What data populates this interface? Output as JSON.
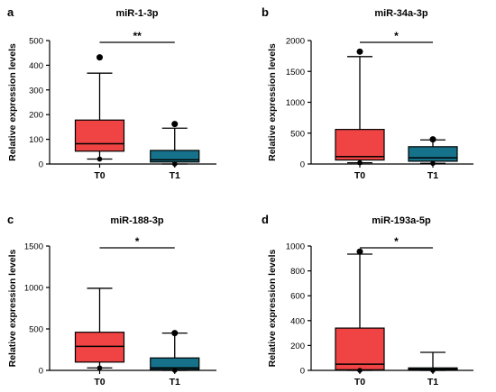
{
  "colors": {
    "t0_fill": "#f04444",
    "t1_fill": "#16728a",
    "stroke": "#000000"
  },
  "chart_data": [
    {
      "panel": "a",
      "type": "box",
      "title": "miR-1-3p",
      "ylabel": "Relative expression levels",
      "ylim": [
        0,
        500
      ],
      "yticks": [
        "0",
        "100",
        "200",
        "300",
        "400",
        "500"
      ],
      "categories": [
        "T0",
        "T1"
      ],
      "series": [
        {
          "category": "T0",
          "min": 20,
          "q1": 52,
          "median": 82,
          "q3": 178,
          "max": 368,
          "outliers": [
            432
          ]
        },
        {
          "category": "T1",
          "min": 0,
          "q1": 8,
          "median": 17,
          "q3": 55,
          "max": 145,
          "outliers": [
            162
          ]
        }
      ],
      "significance": "**"
    },
    {
      "panel": "b",
      "type": "box",
      "title": "miR-34a-3p",
      "ylabel": "Relative expression levels",
      "ylim": [
        0,
        2000
      ],
      "yticks": [
        "0",
        "500",
        "1000",
        "1500",
        "2000"
      ],
      "categories": [
        "T0",
        "T1"
      ],
      "series": [
        {
          "category": "T0",
          "min": 20,
          "q1": 65,
          "median": 120,
          "q3": 560,
          "max": 1740,
          "outliers": [
            1820
          ]
        },
        {
          "category": "T1",
          "min": 10,
          "q1": 45,
          "median": 100,
          "q3": 280,
          "max": 390,
          "outliers": [
            400
          ]
        }
      ],
      "significance": "*"
    },
    {
      "panel": "c",
      "type": "box",
      "title": "miR-188-3p",
      "ylabel": "Relative expression levels",
      "ylim": [
        0,
        1500
      ],
      "yticks": [
        "0",
        "500",
        "1000",
        "1500"
      ],
      "categories": [
        "T0",
        "T1"
      ],
      "series": [
        {
          "category": "T0",
          "min": 30,
          "q1": 100,
          "median": 290,
          "q3": 460,
          "max": 990,
          "outliers": []
        },
        {
          "category": "T1",
          "min": 0,
          "q1": 10,
          "median": 30,
          "q3": 150,
          "max": 450,
          "outliers": [
            450
          ]
        }
      ],
      "significance": "*"
    },
    {
      "panel": "d",
      "type": "box",
      "title": "miR-193a-5p",
      "ylabel": "Relative expression levels",
      "ylim": [
        0,
        1000
      ],
      "yticks": [
        "0",
        "200",
        "400",
        "600",
        "800",
        "1000"
      ],
      "categories": [
        "T0",
        "T1"
      ],
      "series": [
        {
          "category": "T0",
          "min": 0,
          "q1": 5,
          "median": 50,
          "q3": 340,
          "max": 935,
          "outliers": [
            955
          ]
        },
        {
          "category": "T1",
          "min": 0,
          "q1": 5,
          "median": 10,
          "q3": 20,
          "max": 145,
          "outliers": []
        }
      ],
      "significance": "*"
    }
  ]
}
